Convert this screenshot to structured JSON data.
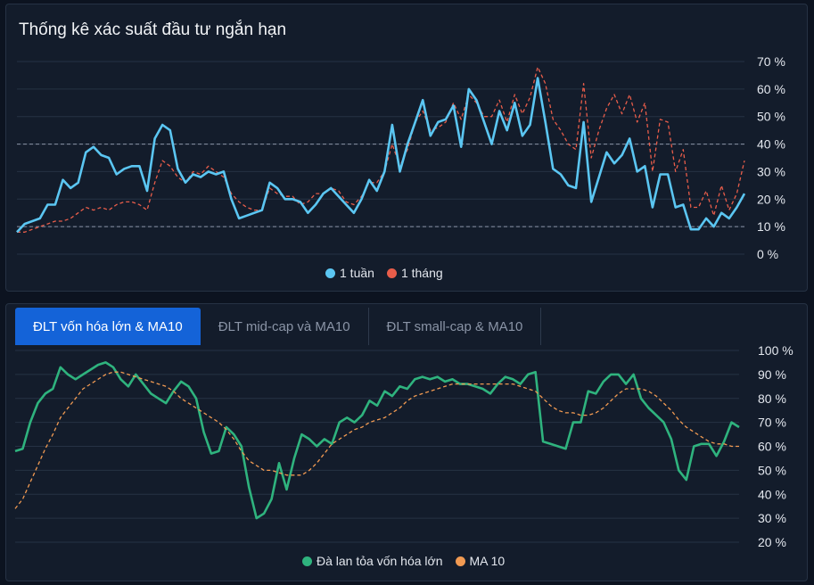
{
  "top_panel": {
    "title": "Thống kê xác suất đầu tư ngắn hạn"
  },
  "bottom_panel": {
    "tabs": [
      {
        "label": "ĐLT vốn hóa lớn & MA10",
        "active": true
      },
      {
        "label": "ĐLT mid-cap và MA10",
        "active": false
      },
      {
        "label": "ĐLT small-cap & MA10",
        "active": false
      }
    ]
  },
  "colors": {
    "week": "#5bc6f2",
    "month": "#e85d4a",
    "breadth": "#2fb37e",
    "ma10": "#f19a52",
    "grid": "#263244",
    "ref": "#8a94a6"
  },
  "chart_data": [
    {
      "type": "line",
      "title": "Thống kê xác suất đầu tư ngắn hạn",
      "ylim": [
        0,
        70
      ],
      "yticks": [
        "0 %",
        "10 %",
        "20 %",
        "30 %",
        "40 %",
        "50 %",
        "60 %",
        "70 %"
      ],
      "reference_lines": [
        10,
        40
      ],
      "legend_position": "bottom-center",
      "series": [
        {
          "name": "1 tuần",
          "style": "solid",
          "values": [
            8,
            11,
            12,
            13,
            18,
            18,
            27,
            24,
            26,
            37,
            39,
            36,
            35,
            29,
            31,
            32,
            32,
            23,
            42,
            47,
            45,
            31,
            26,
            29,
            28,
            30,
            29,
            30,
            20,
            13,
            14,
            15,
            16,
            26,
            24,
            20,
            20,
            19,
            15,
            18,
            22,
            24,
            21,
            18,
            15,
            20,
            27,
            23,
            30,
            47,
            30,
            40,
            48,
            56,
            43,
            48,
            49,
            54,
            39,
            60,
            56,
            48,
            40,
            52,
            45,
            55,
            43,
            47,
            64,
            48,
            31,
            29,
            25,
            24,
            48,
            19,
            28,
            37,
            33,
            36,
            42,
            30,
            32,
            17,
            29,
            29,
            17,
            18,
            9,
            9,
            13,
            10,
            15,
            13,
            17,
            22
          ]
        },
        {
          "name": "1 tháng",
          "style": "dashed",
          "values": [
            8,
            8,
            9,
            10,
            11,
            12,
            12,
            13,
            15,
            17,
            16,
            17,
            16,
            18,
            19,
            19,
            18,
            16,
            26,
            34,
            32,
            28,
            26,
            30,
            29,
            32,
            30,
            28,
            22,
            19,
            17,
            16,
            16,
            24,
            22,
            21,
            21,
            18,
            19,
            22,
            22,
            24,
            23,
            19,
            18,
            21,
            26,
            26,
            30,
            40,
            32,
            38,
            48,
            52,
            45,
            46,
            48,
            55,
            49,
            58,
            55,
            50,
            50,
            56,
            48,
            58,
            51,
            57,
            68,
            62,
            49,
            45,
            40,
            38,
            62,
            35,
            45,
            53,
            58,
            51,
            58,
            48,
            55,
            30,
            49,
            48,
            30,
            38,
            17,
            17,
            23,
            14,
            25,
            16,
            22,
            34
          ]
        }
      ]
    },
    {
      "type": "line",
      "ylim": [
        20,
        100
      ],
      "yticks": [
        "20 %",
        "30 %",
        "40 %",
        "50 %",
        "60 %",
        "70 %",
        "80 %",
        "90 %",
        "100 %"
      ],
      "legend_position": "bottom-center",
      "series": [
        {
          "name": "Đà lan tỏa vốn hóa lớn",
          "style": "solid",
          "values": [
            58,
            59,
            70,
            78,
            82,
            84,
            93,
            90,
            88,
            90,
            92,
            94,
            95,
            93,
            88,
            85,
            90,
            86,
            82,
            80,
            78,
            83,
            87,
            85,
            80,
            66,
            57,
            58,
            68,
            65,
            60,
            43,
            30,
            32,
            38,
            53,
            42,
            55,
            65,
            63,
            60,
            63,
            61,
            70,
            72,
            70,
            73,
            79,
            77,
            83,
            81,
            85,
            84,
            88,
            89,
            88,
            89,
            87,
            88,
            86,
            86,
            85,
            84,
            82,
            86,
            89,
            88,
            86,
            90,
            91,
            62,
            61,
            60,
            59,
            70,
            70,
            83,
            82,
            87,
            90,
            90,
            86,
            90,
            80,
            76,
            73,
            70,
            63,
            50,
            46,
            60,
            61,
            61,
            56,
            62,
            70,
            68
          ]
        },
        {
          "name": "MA 10",
          "style": "dashed",
          "values": [
            34,
            38,
            45,
            52,
            59,
            65,
            72,
            76,
            80,
            84,
            86,
            88,
            90,
            91,
            91,
            90,
            89,
            88,
            87,
            86,
            85,
            83,
            80,
            78,
            76,
            74,
            72,
            70,
            67,
            63,
            58,
            54,
            52,
            50,
            50,
            49,
            48,
            48,
            48,
            50,
            53,
            57,
            61,
            63,
            65,
            67,
            68,
            70,
            71,
            72,
            74,
            76,
            79,
            81,
            82,
            83,
            84,
            85,
            86,
            86,
            86,
            86,
            86,
            86,
            86,
            86,
            86,
            85,
            84,
            83,
            80,
            77,
            75,
            74,
            74,
            73,
            73,
            74,
            76,
            79,
            82,
            84,
            84,
            84,
            83,
            81,
            78,
            75,
            71,
            68,
            66,
            64,
            62,
            61,
            61,
            60,
            60
          ]
        }
      ]
    }
  ]
}
